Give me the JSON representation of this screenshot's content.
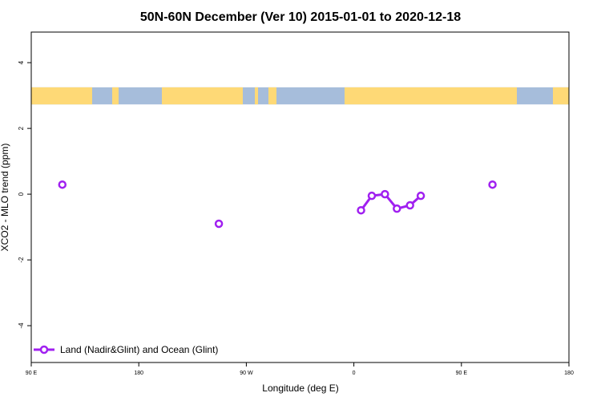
{
  "chart_data": {
    "type": "line",
    "title": "50N-60N December (Ver 10)   2015-01-01 to 2020-12-18",
    "xlabel": "Longitude (deg E)",
    "ylabel": "XCO2 - MLO trend (ppm)",
    "xlim": [
      90,
      540
    ],
    "ylim": [
      -5.12,
      4.93
    ],
    "xticks": [
      {
        "v": 90,
        "label": "90 E"
      },
      {
        "v": 180,
        "label": "180"
      },
      {
        "v": 270,
        "label": "90 W"
      },
      {
        "v": 360,
        "label": "0"
      },
      {
        "v": 450,
        "label": "90 E"
      },
      {
        "v": 540,
        "label": "180"
      }
    ],
    "yticks": [
      {
        "v": 4,
        "label": "4"
      },
      {
        "v": 2,
        "label": "2"
      },
      {
        "v": 0,
        "label": "0"
      },
      {
        "v": -2,
        "label": "-2"
      },
      {
        "v": -4,
        "label": "-4"
      }
    ],
    "map_band_y": [
      2.73,
      3.25
    ],
    "series": [
      {
        "name": "Land (Nadir&Glint) and Ocean (Glint)",
        "color": "#a020f0",
        "segments": [
          [
            [
              116,
              0.29
            ]
          ],
          [
            [
              247,
              -0.9
            ]
          ],
          [
            [
              366,
              -0.49
            ],
            [
              375,
              -0.05
            ],
            [
              386,
              0.0
            ],
            [
              396,
              -0.44
            ],
            [
              407,
              -0.34
            ],
            [
              416,
              -0.05
            ]
          ],
          [
            [
              476,
              0.29
            ]
          ]
        ]
      }
    ],
    "legend": {
      "label": "Land (Nadir&Glint) and Ocean (Glint)",
      "placement": "bottom-left"
    },
    "colors": {
      "land": "#fed976",
      "ocean": "#a6bddb"
    }
  }
}
